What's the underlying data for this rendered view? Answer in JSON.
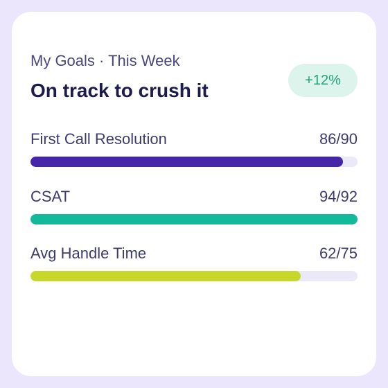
{
  "header": {
    "eyebrow": "My Goals · This Week",
    "title": "On track to crush it",
    "badge": "+12%"
  },
  "goals": [
    {
      "label": "First Call Resolution",
      "value": 86,
      "target": 90,
      "progress_label": "86/90",
      "color": "#4527a8"
    },
    {
      "label": "CSAT",
      "value": 94,
      "target": 92,
      "progress_label": "94/92",
      "color": "#14b89a"
    },
    {
      "label": "Avg Handle Time",
      "value": 62,
      "target": 75,
      "progress_label": "62/75",
      "color": "#c6d82c"
    }
  ]
}
